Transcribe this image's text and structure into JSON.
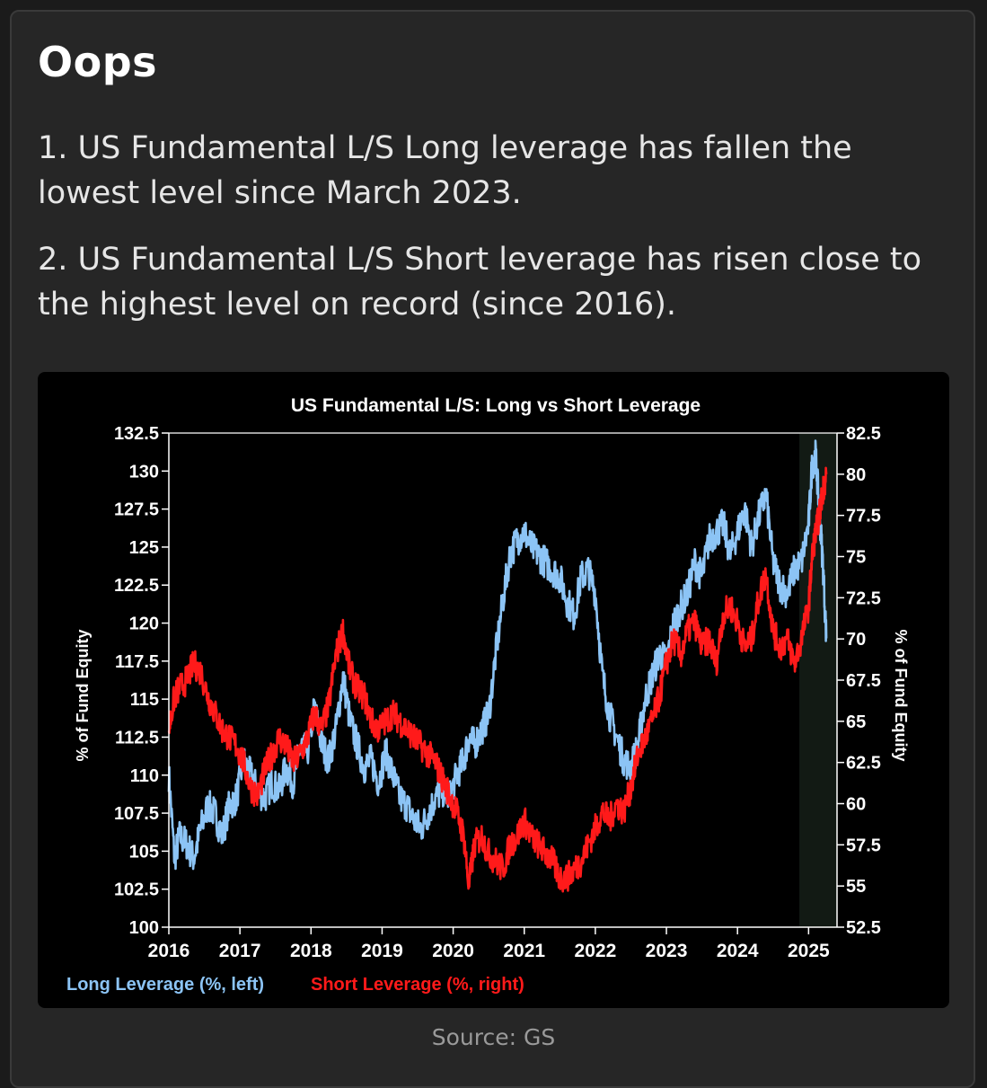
{
  "post": {
    "heading": "Oops",
    "paragraphs": [
      "1. US Fundamental L/S Long leverage has fallen the lowest level since March 2023.",
      "2. US Fundamental L/S Short leverage has risen close to the highest level on record (since 2016)."
    ],
    "source": "Source: GS"
  },
  "colors": {
    "long": "#8cc4f5",
    "short": "#ff1a1a",
    "text": "#ffffff"
  },
  "chart_data": {
    "type": "line",
    "title": "US Fundamental L/S: Long vs Short Leverage",
    "ylabel_left": "% of Fund Equity",
    "ylabel_right": "% of Fund Equity",
    "xlim": [
      2016,
      2025.4
    ],
    "ylim_left": [
      100,
      132.5
    ],
    "ylim_right": [
      52.5,
      82.5
    ],
    "x_ticks": [
      "2016",
      "2017",
      "2018",
      "2019",
      "2020",
      "2021",
      "2022",
      "2023",
      "2024",
      "2025"
    ],
    "y_ticks_left": [
      "100",
      "102.5",
      "105",
      "107.5",
      "110",
      "112.5",
      "115",
      "117.5",
      "120",
      "122.5",
      "125",
      "127.5",
      "130",
      "132.5"
    ],
    "y_ticks_right": [
      "52.5",
      "55",
      "57.5",
      "60",
      "62.5",
      "65",
      "67.5",
      "70",
      "72.5",
      "75",
      "77.5",
      "80",
      "82.5"
    ],
    "shaded_region": [
      2024.87,
      2025.4
    ],
    "grid": false,
    "legend": "bottom-left",
    "series": [
      {
        "name": "Long Leverage (%, left)",
        "axis": "left",
        "x": [
          2016,
          2016.08,
          2016.15,
          2016.25,
          2016.35,
          2016.45,
          2016.55,
          2016.65,
          2016.75,
          2016.85,
          2016.95,
          2017.05,
          2017.15,
          2017.25,
          2017.35,
          2017.45,
          2017.55,
          2017.65,
          2017.75,
          2017.85,
          2017.95,
          2018.05,
          2018.15,
          2018.25,
          2018.35,
          2018.45,
          2018.55,
          2018.65,
          2018.75,
          2018.85,
          2018.95,
          2019.05,
          2019.15,
          2019.25,
          2019.35,
          2019.45,
          2019.55,
          2019.65,
          2019.75,
          2019.85,
          2019.95,
          2020.05,
          2020.15,
          2020.22,
          2020.3,
          2020.4,
          2020.5,
          2020.6,
          2020.7,
          2020.8,
          2020.9,
          2021.0,
          2021.1,
          2021.2,
          2021.3,
          2021.4,
          2021.5,
          2021.6,
          2021.7,
          2021.8,
          2021.9,
          2022.0,
          2022.1,
          2022.2,
          2022.3,
          2022.4,
          2022.5,
          2022.6,
          2022.7,
          2022.8,
          2022.9,
          2023.0,
          2023.1,
          2023.2,
          2023.3,
          2023.4,
          2023.5,
          2023.6,
          2023.7,
          2023.8,
          2023.9,
          2024.0,
          2024.1,
          2024.2,
          2024.3,
          2024.4,
          2024.5,
          2024.6,
          2024.7,
          2024.8,
          2024.9,
          2025.0,
          2025.05,
          2025.1,
          2025.15,
          2025.2,
          2025.25
        ],
        "y": [
          110,
          104.5,
          106,
          105.5,
          104.5,
          106.5,
          108,
          107.5,
          106,
          108,
          108.5,
          111,
          110,
          109,
          108.5,
          109.5,
          109,
          110.5,
          109.5,
          112,
          111.5,
          114.5,
          112,
          111,
          113,
          116.5,
          113.5,
          112,
          110.5,
          111,
          109.5,
          111.5,
          110,
          108.5,
          108,
          107,
          106.5,
          107.5,
          108.5,
          109,
          108.5,
          110,
          111,
          112.5,
          112,
          113,
          114,
          118,
          121.5,
          124.5,
          125.5,
          126,
          125,
          124.5,
          124,
          123.5,
          123,
          121.5,
          120.5,
          123,
          123.5,
          122,
          116.5,
          114,
          112.5,
          111,
          110.5,
          112,
          115,
          116.5,
          118,
          117.5,
          120,
          121,
          122,
          124,
          123,
          125.5,
          126,
          126.5,
          124.5,
          126,
          127.5,
          125,
          127,
          128.5,
          124,
          122.5,
          122,
          123.5,
          124,
          126.5,
          130.5,
          131,
          127.5,
          124,
          119
        ]
      },
      {
        "name": "Short Leverage (%, right)",
        "axis": "right",
        "x": [
          2016,
          2016.08,
          2016.15,
          2016.25,
          2016.35,
          2016.45,
          2016.55,
          2016.65,
          2016.75,
          2016.85,
          2016.95,
          2017.05,
          2017.15,
          2017.25,
          2017.35,
          2017.45,
          2017.55,
          2017.65,
          2017.75,
          2017.85,
          2017.95,
          2018.05,
          2018.15,
          2018.25,
          2018.35,
          2018.45,
          2018.55,
          2018.65,
          2018.75,
          2018.85,
          2018.95,
          2019.05,
          2019.15,
          2019.25,
          2019.35,
          2019.45,
          2019.55,
          2019.65,
          2019.75,
          2019.85,
          2019.95,
          2020.05,
          2020.15,
          2020.22,
          2020.3,
          2020.4,
          2020.5,
          2020.6,
          2020.7,
          2020.8,
          2020.9,
          2021.0,
          2021.1,
          2021.2,
          2021.3,
          2021.4,
          2021.5,
          2021.6,
          2021.7,
          2021.8,
          2021.9,
          2022.0,
          2022.1,
          2022.2,
          2022.3,
          2022.4,
          2022.5,
          2022.6,
          2022.7,
          2022.8,
          2022.9,
          2023.0,
          2023.1,
          2023.2,
          2023.3,
          2023.4,
          2023.5,
          2023.6,
          2023.7,
          2023.8,
          2023.9,
          2024.0,
          2024.1,
          2024.2,
          2024.3,
          2024.4,
          2024.5,
          2024.6,
          2024.7,
          2024.8,
          2024.9,
          2025.0,
          2025.05,
          2025.1,
          2025.15,
          2025.2,
          2025.25
        ],
        "y": [
          64.5,
          66.5,
          67,
          67.5,
          68.5,
          68,
          66.5,
          65.5,
          64.5,
          64,
          63.5,
          62.5,
          61,
          60.5,
          62,
          63,
          64,
          63.5,
          62.5,
          63,
          64,
          65.5,
          64.5,
          66,
          69,
          70.5,
          68,
          67,
          66.5,
          65,
          64.5,
          65,
          65.5,
          65,
          64.5,
          64,
          63.5,
          63,
          62.5,
          61.5,
          60.5,
          59.5,
          58,
          55,
          57.5,
          58,
          57,
          56.5,
          56,
          57.5,
          58,
          59,
          58,
          57.5,
          57,
          56.5,
          55.5,
          55.5,
          56,
          56.5,
          57.5,
          58.5,
          59.5,
          59,
          60,
          59.5,
          61,
          63,
          64,
          65,
          66.5,
          68.5,
          70,
          69,
          70.5,
          71,
          69.5,
          70,
          68.5,
          71.5,
          72,
          71,
          69.5,
          70,
          72.5,
          74,
          70.5,
          69.5,
          70,
          68.5,
          70,
          72,
          75,
          76.5,
          77.5,
          79,
          80
        ]
      }
    ]
  }
}
